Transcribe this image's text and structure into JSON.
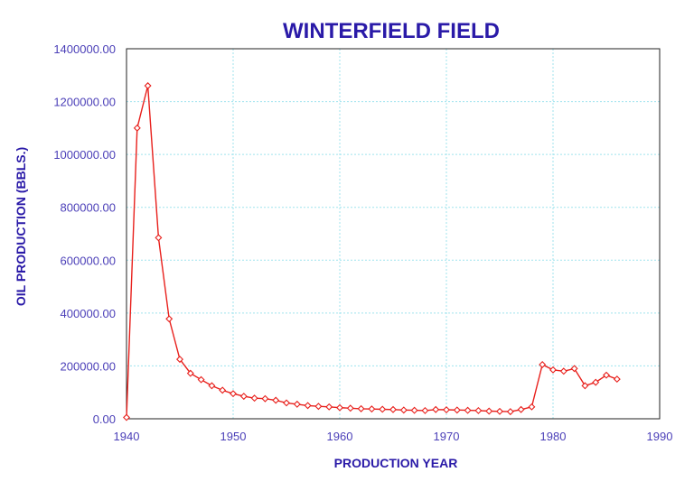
{
  "chart_data": {
    "type": "line",
    "title": "WINTERFIELD FIELD",
    "xlabel": "PRODUCTION YEAR",
    "ylabel": "OIL PRODUCTION (BBLS.)",
    "xlim": [
      1940,
      1990
    ],
    "ylim": [
      0,
      1400000
    ],
    "x_ticks": [
      1940,
      1950,
      1960,
      1970,
      1980,
      1990
    ],
    "y_ticks": [
      0,
      200000,
      400000,
      600000,
      800000,
      1000000,
      1200000,
      1400000
    ],
    "y_tick_labels": [
      "0.00",
      "200000.00",
      "400000.00",
      "600000.00",
      "800000.00",
      "1000000.00",
      "1200000.00",
      "1400000.00"
    ],
    "grid": true,
    "colors": {
      "series": "#e8201c",
      "text": "#2a1aa8"
    },
    "series": [
      {
        "x": [
          1940,
          1941,
          1942,
          1943,
          1944,
          1945,
          1946,
          1947,
          1948,
          1949,
          1950,
          1951,
          1952,
          1953,
          1954,
          1955,
          1956,
          1957,
          1958,
          1959,
          1960,
          1961,
          1962,
          1963,
          1964,
          1965,
          1966,
          1967,
          1968,
          1969,
          1970,
          1971,
          1972,
          1973,
          1974,
          1975,
          1976,
          1977,
          1978,
          1979,
          1980,
          1981,
          1982,
          1983,
          1984,
          1985,
          1986
        ],
        "values": [
          5000,
          1100000,
          1260000,
          685000,
          378000,
          225000,
          172000,
          148000,
          125000,
          108000,
          95000,
          85000,
          78000,
          76000,
          70000,
          60000,
          55000,
          50000,
          47000,
          45000,
          42000,
          40000,
          38000,
          37000,
          36000,
          35000,
          33000,
          32000,
          31000,
          35000,
          34000,
          33000,
          32000,
          31000,
          29000,
          28000,
          27000,
          35000,
          45000,
          205000,
          185000,
          180000,
          190000,
          125000,
          138000,
          165000,
          150000
        ]
      }
    ]
  }
}
